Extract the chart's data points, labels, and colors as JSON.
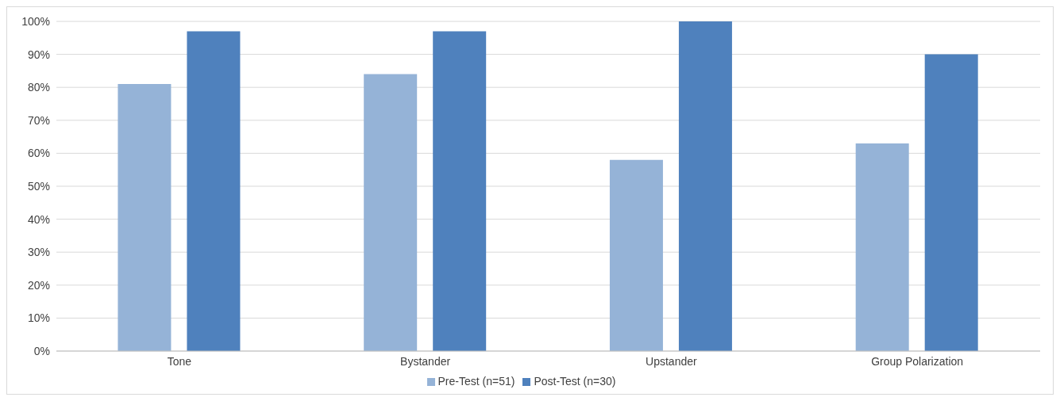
{
  "chart_data": {
    "type": "bar",
    "categories": [
      "Tone",
      "Bystander",
      "Upstander",
      "Group Polarization"
    ],
    "series": [
      {
        "name": "Pre-Test (n=51)",
        "color": "#95b3d7",
        "values": [
          81,
          84,
          58,
          63
        ]
      },
      {
        "name": "Post-Test (n=30)",
        "color": "#4f81bd",
        "values": [
          97,
          97,
          100,
          90
        ]
      }
    ],
    "ylim": [
      0,
      100
    ],
    "yticks": [
      {
        "value": 0,
        "label": "0%"
      },
      {
        "value": 10,
        "label": "10%"
      },
      {
        "value": 20,
        "label": "20%"
      },
      {
        "value": 30,
        "label": "30%"
      },
      {
        "value": 40,
        "label": "40%"
      },
      {
        "value": 50,
        "label": "50%"
      },
      {
        "value": 60,
        "label": "60%"
      },
      {
        "value": 70,
        "label": "70%"
      },
      {
        "value": 80,
        "label": "80%"
      },
      {
        "value": 90,
        "label": "90%"
      },
      {
        "value": 100,
        "label": "100%"
      }
    ],
    "grid": "y",
    "legend": "bottom"
  }
}
